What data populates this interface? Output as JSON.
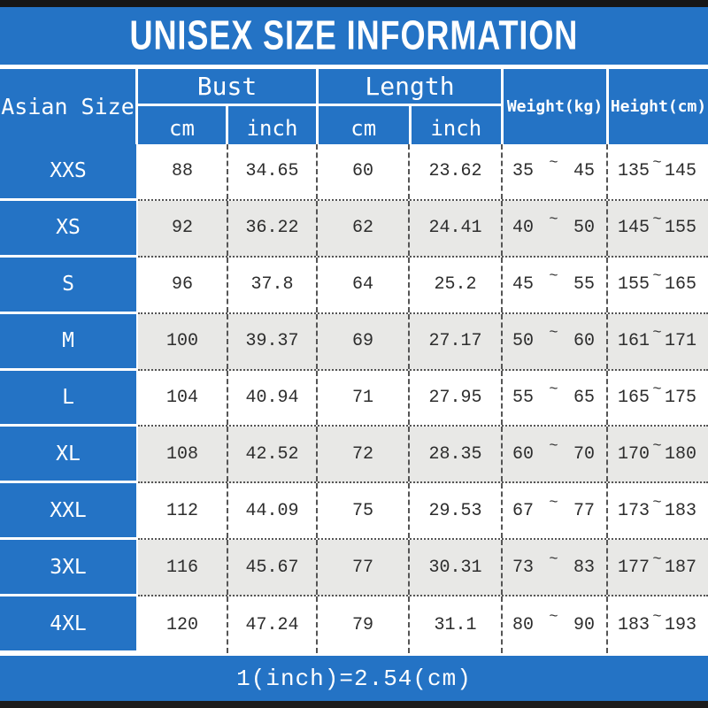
{
  "title": "UNISEX SIZE INFORMATION",
  "symbols": {
    "tilde": "~"
  },
  "colors": {
    "accent_blue": "#2473c5",
    "row_alt_gray": "#e8e8e6",
    "bar_black": "#161616",
    "text_ink": "#2d2d2d"
  },
  "table": {
    "size_header": "Asian Size",
    "groups": [
      {
        "label": "Bust",
        "sub": [
          "cm",
          "inch"
        ]
      },
      {
        "label": "Length",
        "sub": [
          "cm",
          "inch"
        ]
      }
    ],
    "weight_header": "Weight(kg)",
    "height_header": "Height(cm)",
    "rows": [
      {
        "size": "XXS",
        "bust_cm": "88",
        "bust_inch": "34.65",
        "length_cm": "60",
        "length_inch": "23.62",
        "weight_min": "35",
        "weight_max": "45",
        "height_min": "135",
        "height_max": "145"
      },
      {
        "size": "XS",
        "bust_cm": "92",
        "bust_inch": "36.22",
        "length_cm": "62",
        "length_inch": "24.41",
        "weight_min": "40",
        "weight_max": "50",
        "height_min": "145",
        "height_max": "155"
      },
      {
        "size": "S",
        "bust_cm": "96",
        "bust_inch": "37.8",
        "length_cm": "64",
        "length_inch": "25.2",
        "weight_min": "45",
        "weight_max": "55",
        "height_min": "155",
        "height_max": "165"
      },
      {
        "size": "M",
        "bust_cm": "100",
        "bust_inch": "39.37",
        "length_cm": "69",
        "length_inch": "27.17",
        "weight_min": "50",
        "weight_max": "60",
        "height_min": "161",
        "height_max": "171"
      },
      {
        "size": "L",
        "bust_cm": "104",
        "bust_inch": "40.94",
        "length_cm": "71",
        "length_inch": "27.95",
        "weight_min": "55",
        "weight_max": "65",
        "height_min": "165",
        "height_max": "175"
      },
      {
        "size": "XL",
        "bust_cm": "108",
        "bust_inch": "42.52",
        "length_cm": "72",
        "length_inch": "28.35",
        "weight_min": "60",
        "weight_max": "70",
        "height_min": "170",
        "height_max": "180"
      },
      {
        "size": "XXL",
        "bust_cm": "112",
        "bust_inch": "44.09",
        "length_cm": "75",
        "length_inch": "29.53",
        "weight_min": "67",
        "weight_max": "77",
        "height_min": "173",
        "height_max": "183"
      },
      {
        "size": "3XL",
        "bust_cm": "116",
        "bust_inch": "45.67",
        "length_cm": "77",
        "length_inch": "30.31",
        "weight_min": "73",
        "weight_max": "83",
        "height_min": "177",
        "height_max": "187"
      },
      {
        "size": "4XL",
        "bust_cm": "120",
        "bust_inch": "47.24",
        "length_cm": "79",
        "length_inch": "31.1",
        "weight_min": "80",
        "weight_max": "90",
        "height_min": "183",
        "height_max": "193"
      }
    ]
  },
  "footer": {
    "note": "1(inch)=2.54(cm)"
  },
  "chart_data": {
    "type": "table",
    "title": "UNISEX SIZE INFORMATION",
    "columns": [
      "Asian Size",
      "Bust cm",
      "Bust inch",
      "Length cm",
      "Length inch",
      "Weight(kg)",
      "Height(cm)"
    ],
    "rows": [
      [
        "XXS",
        88,
        34.65,
        60,
        23.62,
        "35~45",
        "135~145"
      ],
      [
        "XS",
        92,
        36.22,
        62,
        24.41,
        "40~50",
        "145~155"
      ],
      [
        "S",
        96,
        37.8,
        64,
        25.2,
        "45~55",
        "155~165"
      ],
      [
        "M",
        100,
        39.37,
        69,
        27.17,
        "50~60",
        "161~171"
      ],
      [
        "L",
        104,
        40.94,
        71,
        27.95,
        "55~65",
        "165~175"
      ],
      [
        "XL",
        108,
        42.52,
        72,
        28.35,
        "60~70",
        "170~180"
      ],
      [
        "XXL",
        112,
        44.09,
        75,
        29.53,
        "67~77",
        "173~183"
      ],
      [
        "3XL",
        116,
        45.67,
        77,
        30.31,
        "73~83",
        "177~187"
      ],
      [
        "4XL",
        120,
        47.24,
        79,
        31.1,
        "80~90",
        "183~193"
      ]
    ],
    "note": "1(inch)=2.54(cm)",
    "layout": {
      "header_background": "#2473c5",
      "alternating_rows": true
    }
  }
}
